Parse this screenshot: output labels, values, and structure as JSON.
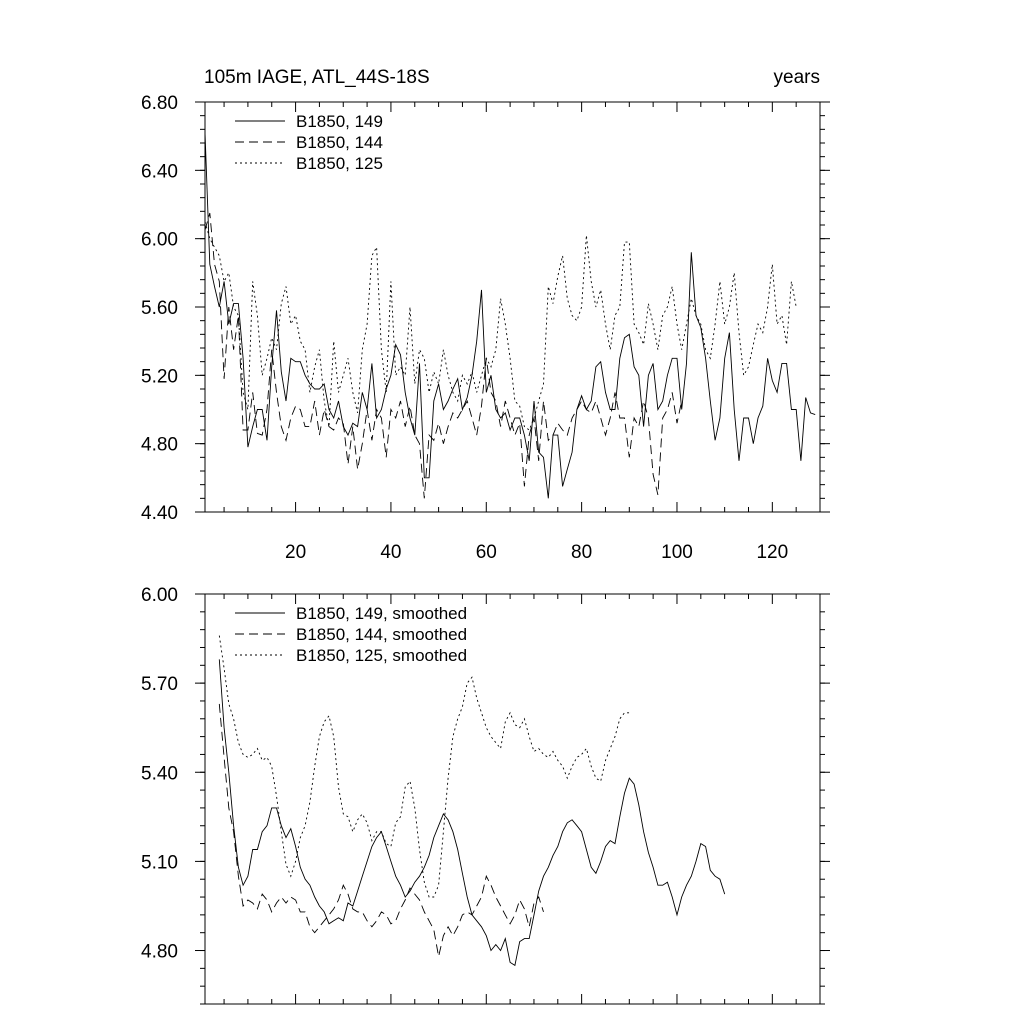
{
  "chart_data": [
    {
      "type": "line",
      "title_left": "105m IAGE, ATL_44S-18S",
      "title_right": "years",
      "xlim": [
        1,
        130
      ],
      "ylim": [
        4.4,
        6.8
      ],
      "x_ticks": [
        20,
        40,
        60,
        80,
        100,
        120
      ],
      "x_tick_labels": [
        "20",
        "40",
        "60",
        "80",
        "100",
        "120"
      ],
      "y_ticks": [
        4.4,
        4.8,
        5.2,
        5.6,
        6.0,
        6.4,
        6.8
      ],
      "y_tick_labels": [
        "4.40",
        "4.80",
        "5.20",
        "5.60",
        "6.00",
        "6.40",
        "6.80"
      ],
      "legend_position": "top-left",
      "series": [
        {
          "name": "B1850, 149",
          "style": "solid",
          "x_start": 1,
          "values": [
            6.62,
            5.85,
            5.72,
            5.6,
            5.75,
            5.5,
            5.62,
            5.62,
            5.3,
            4.78,
            4.9,
            5.0,
            5.0,
            4.82,
            5.25,
            5.58,
            5.22,
            5.05,
            5.3,
            5.28,
            5.28,
            5.2,
            5.15,
            5.12,
            5.12,
            5.15,
            5.0,
            4.95,
            5.05,
            4.9,
            4.85,
            4.92,
            4.9,
            5.1,
            5.0,
            5.27,
            4.95,
            5.0,
            5.12,
            5.2,
            5.38,
            5.32,
            5.1,
            4.95,
            4.85,
            5.27,
            4.6,
            4.6,
            5.05,
            5.15,
            5.0,
            5.05,
            5.12,
            5.18,
            5.0,
            5.07,
            5.2,
            5.4,
            5.7,
            5.1,
            5.2,
            5.0,
            4.95,
            4.98,
            4.88,
            4.95,
            4.95,
            4.85,
            4.7,
            5.05,
            4.75,
            4.72,
            4.48,
            4.85,
            4.85,
            4.55,
            4.65,
            4.75,
            5.0,
            5.08,
            5.0,
            5.05,
            5.25,
            5.28,
            5.1,
            5.0,
            5.0,
            5.3,
            5.42,
            5.44,
            5.25,
            5.2,
            4.9,
            5.2,
            5.27,
            5.0,
            5.05,
            5.2,
            5.3,
            5.3,
            5.0,
            5.27,
            5.92,
            5.55,
            5.48,
            5.3,
            5.05,
            4.82,
            4.95,
            5.3,
            5.45,
            5.0,
            4.7,
            4.95,
            4.95,
            4.8,
            4.95,
            5.02,
            5.3,
            5.17,
            5.1,
            5.27,
            5.27,
            5.0,
            5.0,
            4.7,
            5.07,
            4.98,
            4.97
          ]
        },
        {
          "name": "B1850, 144",
          "style": "dashed",
          "x_start": 1,
          "values": [
            6.05,
            6.15,
            5.85,
            5.75,
            5.18,
            5.6,
            5.35,
            5.55,
            4.88,
            4.88,
            5.1,
            4.86,
            4.85,
            5.0,
            5.35,
            5.1,
            4.9,
            4.82,
            4.95,
            5.02,
            5.0,
            4.9,
            4.9,
            5.05,
            4.85,
            5.0,
            4.9,
            4.88,
            4.95,
            4.92,
            4.68,
            4.9,
            4.65,
            4.8,
            5.0,
            4.82,
            5.0,
            4.95,
            4.72,
            5.0,
            4.95,
            5.05,
            4.9,
            5.02,
            4.85,
            4.8,
            4.48,
            4.85,
            4.82,
            4.92,
            4.8,
            4.9,
            4.98,
            4.95,
            5.0,
            5.05,
            4.95,
            4.85,
            5.02,
            5.3,
            5.1,
            5.05,
            4.9,
            5.05,
            4.95,
            4.85,
            4.92,
            4.55,
            4.85,
            4.95,
            4.7,
            5.05,
            4.82,
            4.85,
            4.92,
            4.88,
            4.85,
            4.95,
            5.0,
            5.05,
            5.0,
            4.98,
            5.05,
            4.95,
            4.85,
            4.95,
            5.1,
            4.95,
            4.95,
            4.72,
            4.95,
            4.9,
            5.05,
            4.95,
            4.62,
            4.5,
            4.95,
            5.0,
            5.1,
            4.92,
            5.05
          ]
        },
        {
          "name": "B1850, 125",
          "style": "dotted",
          "x_start": 1,
          "values": [
            6.1,
            6.0,
            5.95,
            5.9,
            5.75,
            5.8,
            5.6,
            5.55,
            5.1,
            5.0,
            5.75,
            5.55,
            5.2,
            5.3,
            5.42,
            5.35,
            5.62,
            5.72,
            5.5,
            5.55,
            5.4,
            5.35,
            5.1,
            5.25,
            5.35,
            5.05,
            4.9,
            5.4,
            5.1,
            5.2,
            5.3,
            5.1,
            4.98,
            5.35,
            5.5,
            5.9,
            5.95,
            5.35,
            5.1,
            5.75,
            5.2,
            5.25,
            5.2,
            5.6,
            5.15,
            5.35,
            5.3,
            5.1,
            5.22,
            5.15,
            5.35,
            5.2,
            5.1,
            5.05,
            5.2,
            5.15,
            5.22,
            5.1,
            5.2,
            5.3,
            5.25,
            5.35,
            5.65,
            5.5,
            5.3,
            5.05,
            5.02,
            4.9,
            4.88,
            4.95,
            5.05,
            5.15,
            5.72,
            5.62,
            5.78,
            5.9,
            5.65,
            5.55,
            5.52,
            5.6,
            6.02,
            5.75,
            5.6,
            5.7,
            5.5,
            5.35,
            5.55,
            5.6,
            5.98,
            5.98,
            5.5,
            5.45,
            5.38,
            5.62,
            5.5,
            5.35,
            5.55,
            5.6,
            5.72,
            5.5,
            5.35,
            5.5,
            5.65,
            5.55,
            5.5,
            5.35,
            5.3,
            5.5,
            5.75,
            5.5,
            5.6,
            5.8,
            5.45,
            5.2,
            5.25,
            5.38,
            5.5,
            5.45,
            5.6,
            5.85,
            5.5,
            5.55,
            5.38,
            5.75,
            5.6
          ]
        }
      ]
    },
    {
      "type": "line",
      "xlim": [
        1,
        130
      ],
      "ylim": [
        4.62,
        6.0
      ],
      "x_ticks": [
        20,
        40,
        60,
        80,
        100,
        120
      ],
      "y_ticks": [
        4.8,
        5.1,
        5.4,
        5.7,
        6.0
      ],
      "y_tick_labels": [
        "4.80",
        "5.10",
        "5.40",
        "5.70",
        "6.00"
      ],
      "legend_position": "top-left",
      "series": [
        {
          "name": "B1850, 149, smoothed",
          "style": "solid",
          "x_start": 4,
          "values": [
            5.78,
            5.55,
            5.4,
            5.22,
            5.08,
            5.02,
            5.05,
            5.14,
            5.14,
            5.2,
            5.22,
            5.28,
            5.28,
            5.22,
            5.18,
            5.21,
            5.15,
            5.08,
            5.04,
            5.02,
            4.98,
            4.95,
            4.93,
            4.89,
            4.9,
            4.91,
            4.9,
            4.96,
            4.95,
            5.0,
            5.05,
            5.1,
            5.15,
            5.18,
            5.2,
            5.15,
            5.1,
            5.05,
            5.02,
            4.98,
            5.0,
            5.03,
            5.05,
            5.08,
            5.12,
            5.18,
            5.22,
            5.26,
            5.24,
            5.2,
            5.14,
            5.06,
            4.98,
            4.92,
            4.9,
            4.88,
            4.85,
            4.8,
            4.82,
            4.8,
            4.84,
            4.76,
            4.75,
            4.83,
            4.84,
            4.84,
            4.92,
            5.0,
            5.05,
            5.08,
            5.12,
            5.15,
            5.2,
            5.23,
            5.24,
            5.22,
            5.2,
            5.14,
            5.08,
            5.06,
            5.1,
            5.15,
            5.17,
            5.16,
            5.25,
            5.33,
            5.38,
            5.36,
            5.29,
            5.2,
            5.13,
            5.08,
            5.02,
            5.02,
            5.03,
            4.98,
            4.92,
            4.98,
            5.02,
            5.05,
            5.1,
            5.16,
            5.15,
            5.07,
            5.05,
            5.04,
            4.99
          ]
        },
        {
          "name": "B1850, 144, smoothed",
          "style": "dashed",
          "x_start": 4,
          "values": [
            5.63,
            5.45,
            5.28,
            5.2,
            5.05,
            4.95,
            4.97,
            4.96,
            4.94,
            4.99,
            4.97,
            4.93,
            4.96,
            4.98,
            4.96,
            4.98,
            4.97,
            4.93,
            4.93,
            4.88,
            4.86,
            4.88,
            4.9,
            4.92,
            4.94,
            4.97,
            5.02,
            4.99,
            4.94,
            4.93,
            4.93,
            4.9,
            4.88,
            4.9,
            4.93,
            4.92,
            4.89,
            4.9,
            4.94,
            4.97,
            5.01,
            4.99,
            4.97,
            4.93,
            4.9,
            4.87,
            4.78,
            4.85,
            4.88,
            4.85,
            4.88,
            4.92,
            4.93,
            4.92,
            4.95,
            4.98,
            5.05,
            5.02,
            4.98,
            4.95,
            4.92,
            4.89,
            4.92,
            4.97,
            4.94,
            4.88,
            4.96,
            4.98,
            4.93
          ]
        },
        {
          "name": "B1850, 125, smoothed",
          "style": "dotted",
          "x_start": 4,
          "values": [
            5.86,
            5.75,
            5.63,
            5.58,
            5.5,
            5.46,
            5.45,
            5.46,
            5.48,
            5.44,
            5.45,
            5.42,
            5.32,
            5.2,
            5.09,
            5.05,
            5.1,
            5.18,
            5.22,
            5.3,
            5.42,
            5.52,
            5.57,
            5.59,
            5.52,
            5.35,
            5.26,
            5.25,
            5.2,
            5.24,
            5.26,
            5.23,
            5.17,
            5.2,
            5.2,
            5.16,
            5.15,
            5.23,
            5.25,
            5.35,
            5.37,
            5.28,
            5.14,
            5.03,
            4.98,
            4.98,
            5.02,
            5.2,
            5.38,
            5.52,
            5.58,
            5.62,
            5.7,
            5.72,
            5.65,
            5.6,
            5.55,
            5.52,
            5.5,
            5.48,
            5.57,
            5.6,
            5.56,
            5.55,
            5.58,
            5.52,
            5.47,
            5.48,
            5.46,
            5.45,
            5.47,
            5.44,
            5.42,
            5.38,
            5.42,
            5.45,
            5.46,
            5.48,
            5.42,
            5.38,
            5.37,
            5.44,
            5.48,
            5.52,
            5.58,
            5.6,
            5.6
          ]
        }
      ]
    }
  ]
}
